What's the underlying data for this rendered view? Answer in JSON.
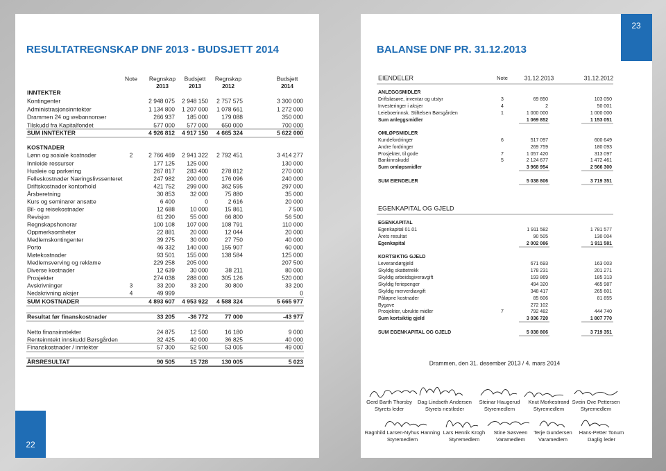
{
  "page_numbers": {
    "left": "22",
    "right": "23"
  },
  "result": {
    "title": "RESULTATREGNSKAP DNF 2013 - BUDSJETT 2014",
    "note_header": "Note",
    "column_heads": [
      [
        "Regnskap",
        "2013"
      ],
      [
        "Budsjett",
        "2013"
      ],
      [
        "Regnskap",
        "2012"
      ],
      [
        "Budsjett",
        "2014"
      ]
    ],
    "rows": [
      {
        "label": "INNTEKTER"
      },
      {
        "label": "Kontingenter",
        "values": [
          "2 948 075",
          "2 948 150",
          "2 757 575",
          "3 300 000"
        ]
      },
      {
        "label": "Administrasjonsinntekter",
        "values": [
          "1 134 800",
          "1 207 000",
          "1 078 661",
          "1 272 000"
        ]
      },
      {
        "label": "Drammen 24 og webannonser",
        "values": [
          "266 937",
          "185 000",
          "179 088",
          "350 000"
        ]
      },
      {
        "label": "Tilskudd fra Kapitalfondet",
        "values": [
          "577 000",
          "577 000",
          "650 000",
          "700 000"
        ]
      },
      {
        "label": "SUM INNTEKTER",
        "values": [
          "4 926 812",
          "4 917 150",
          "4 665 324",
          "5 622 000"
        ]
      },
      {
        "label": "KOSTNADER"
      },
      {
        "label": "Lønn og sosiale kostnader",
        "note": "2",
        "values": [
          "2 766 469",
          "2 941 322",
          "2 792 451",
          "3 414 277"
        ]
      },
      {
        "label": "Innleide ressurser",
        "values": [
          "177 125",
          "125 000",
          null,
          "130 000"
        ]
      },
      {
        "label": "Husleie og parkering",
        "values": [
          "267 817",
          "283 400",
          "278 812",
          "270 000"
        ]
      },
      {
        "label": "Felleskostnader Næringslivssenteret",
        "values": [
          "247 982",
          "200 000",
          "176 096",
          "240 000"
        ]
      },
      {
        "label": "Driftskostnader kontorhold",
        "values": [
          "421 752",
          "299 000",
          "362 595",
          "297 000"
        ]
      },
      {
        "label": "Årsberetning",
        "values": [
          "30 853",
          "32 000",
          "75 880",
          "35 000"
        ]
      },
      {
        "label": "Kurs og seminarer ansatte",
        "values": [
          "6 400",
          "0",
          "2 616",
          "20 000"
        ]
      },
      {
        "label": "Bil- og reisekostnader",
        "values": [
          "12 688",
          "10 000",
          "15 861",
          "7 500"
        ]
      },
      {
        "label": "Revisjon",
        "values": [
          "61 290",
          "55 000",
          "66 800",
          "56 500"
        ]
      },
      {
        "label": "Regnskapshonorar",
        "values": [
          "100 108",
          "107 000",
          "108 791",
          "110 000"
        ]
      },
      {
        "label": "Oppmerksomheter",
        "values": [
          "22 881",
          "20 000",
          "12 044",
          "20 000"
        ]
      },
      {
        "label": "Medlemskontingenter",
        "values": [
          "39 275",
          "30 000",
          "27 750",
          "40 000"
        ]
      },
      {
        "label": "Porto",
        "values": [
          "46 332",
          "140 000",
          "155 907",
          "60 000"
        ]
      },
      {
        "label": "Møtekostnader",
        "values": [
          "93 501",
          "155 000",
          "138 584",
          "125 000"
        ]
      },
      {
        "label": "Medlemsverving og reklame",
        "values": [
          "229 258",
          "205 000",
          null,
          "207 500"
        ]
      },
      {
        "label": "Diverse kostnader",
        "values": [
          "12 639",
          "30 000",
          "38 211",
          "80 000"
        ]
      },
      {
        "label": "Prosjekter",
        "values": [
          "274 038",
          "288 000",
          "305 126",
          "520 000"
        ]
      },
      {
        "label": "Avskrivninger",
        "note": "3",
        "values": [
          "33 200",
          "33 200",
          "30 800",
          "33 200"
        ]
      },
      {
        "label": "Nedskrivning aksjer",
        "note": "4",
        "values": [
          "49 999",
          null,
          null,
          "0"
        ]
      },
      {
        "label": "SUM KOSTNADER",
        "values": [
          "4 893 607",
          "4 953 922",
          "4 588 324",
          "5 665 977"
        ]
      },
      {
        "label": "Resultat før finanskostnader",
        "values": [
          "33 205",
          "-36 772",
          "77 000",
          "-43 977"
        ]
      },
      {
        "label": "Netto finansinntekter",
        "values": [
          "24 875",
          "12 500",
          "16 180",
          "9 000"
        ]
      },
      {
        "label": "Renteinntekt innskudd Børsgården",
        "values": [
          "32 425",
          "40 000",
          "36 825",
          "40 000"
        ]
      },
      {
        "label": "Finanskostnader / inntekter",
        "values": [
          "57 300",
          "52 500",
          "53 005",
          "49 000"
        ]
      },
      {
        "label": "ÅRSRESULTAT",
        "values": [
          "90 505",
          "15 728",
          "130 005",
          "5 023"
        ]
      }
    ]
  },
  "balance": {
    "title": "BALANSE DNF PR. 31.12.2013",
    "heading": "EIENDELER",
    "note_header": "Note",
    "dates": [
      "31.12.2013",
      "31.12.2012"
    ],
    "rows": [
      {
        "label": "ANLEGGSMIDLER"
      },
      {
        "label": "Driftsløsøre, inventar og utstyr",
        "note": "3",
        "values": [
          "69 850",
          "103 050"
        ]
      },
      {
        "label": "Investeringer i aksjer",
        "note": "4",
        "values": [
          "2",
          "50 001"
        ]
      },
      {
        "label": "Leieboerinnsk. Stiftelsen Børsgården",
        "note": "1",
        "values": [
          "1 000 000",
          "1 000 000"
        ]
      },
      {
        "label": "Sum anleggsmidler",
        "values": [
          "1 069 852",
          "1 153 051"
        ]
      },
      {
        "label": "OMLØPSMIDLER"
      },
      {
        "label": "Kundefordringer",
        "note": "6",
        "values": [
          "517 097",
          "600 649"
        ]
      },
      {
        "label": "Andre fordringer",
        "values": [
          "269 759",
          "180 093"
        ]
      },
      {
        "label": "Prosjekter, til gode",
        "note": "7",
        "values": [
          "1 057 420",
          "313 097"
        ]
      },
      {
        "label": "Bankinnskudd",
        "note": "5",
        "values": [
          "2 124 677",
          "1 472 461"
        ]
      },
      {
        "label": "Sum omløpsmidler",
        "values": [
          "3 968 954",
          "2 566 300"
        ]
      },
      {
        "label": "SUM EIENDELER",
        "values": [
          "5 038 806",
          "3 719 351"
        ]
      },
      {
        "label": "EGENKAPITAL OG GJELD"
      },
      {
        "label": "EGENKAPITAL"
      },
      {
        "label": "Egenkapital 01.01",
        "values": [
          "1 911 582",
          "1 781 577"
        ]
      },
      {
        "label": "Årets resultat",
        "values": [
          "90 505",
          "130 004"
        ]
      },
      {
        "label": "Egenkapital",
        "values": [
          "2 002 086",
          "1 911 581"
        ]
      },
      {
        "label": "KORTSIKTIG GJELD"
      },
      {
        "label": "Leverandørgjeld",
        "values": [
          "671 693",
          "163 003"
        ]
      },
      {
        "label": "Skyldig skattetrekk",
        "values": [
          "178 231",
          "201 271"
        ]
      },
      {
        "label": "Skyldig arbeidsgiveravgift",
        "values": [
          "193 869",
          "185 313"
        ]
      },
      {
        "label": "Skyldig feriepenger",
        "values": [
          "494 320",
          "465 987"
        ]
      },
      {
        "label": "Skyldig merverdiavgift",
        "values": [
          "348 417",
          "265 601"
        ]
      },
      {
        "label": "Påløpne kostnader",
        "values": [
          "85 606",
          "81 855"
        ]
      },
      {
        "label": "Bygave",
        "values": [
          "272 102",
          null
        ]
      },
      {
        "label": "Prosjekter, ubrukte midler",
        "note": "7",
        "values": [
          "792 482",
          "444 740"
        ]
      },
      {
        "label": "Sum kortsiktig gjeld",
        "values": [
          "3 036 720",
          "1 807 770"
        ]
      },
      {
        "label": "SUM EGENKAPITAL OG GJELD",
        "values": [
          "5 038 806",
          "3 719 351"
        ]
      }
    ]
  },
  "footer": {
    "place_date": "Drammen, den 31. desember 2013 / 4. mars 2014",
    "signatories": [
      {
        "name": "Gerd Barth Thorsby",
        "role": "Styrets leder"
      },
      {
        "name": "Dag Lindseth Andersen",
        "role": "Styrets nestleder"
      },
      {
        "name": "Steinar Haugerud",
        "role": "Styremedlem"
      },
      {
        "name": "Knut Morkestrand",
        "role": "Styremedlem"
      },
      {
        "name": "Svein Ove Pettersen",
        "role": "Styremedlem"
      },
      {
        "name": "Ragnhild Larsen-Nyhus Hanning",
        "role": "Styremedlem"
      },
      {
        "name": "Lars Henrik Krogh",
        "role": "Styremedlem"
      },
      {
        "name": "Stine Søsveen",
        "role": "Varamedlem"
      },
      {
        "name": "Terje Gundersen",
        "role": "Varamedlem"
      },
      {
        "name": "Hans-Petter Tonum",
        "role": "Daglig leder"
      }
    ]
  }
}
